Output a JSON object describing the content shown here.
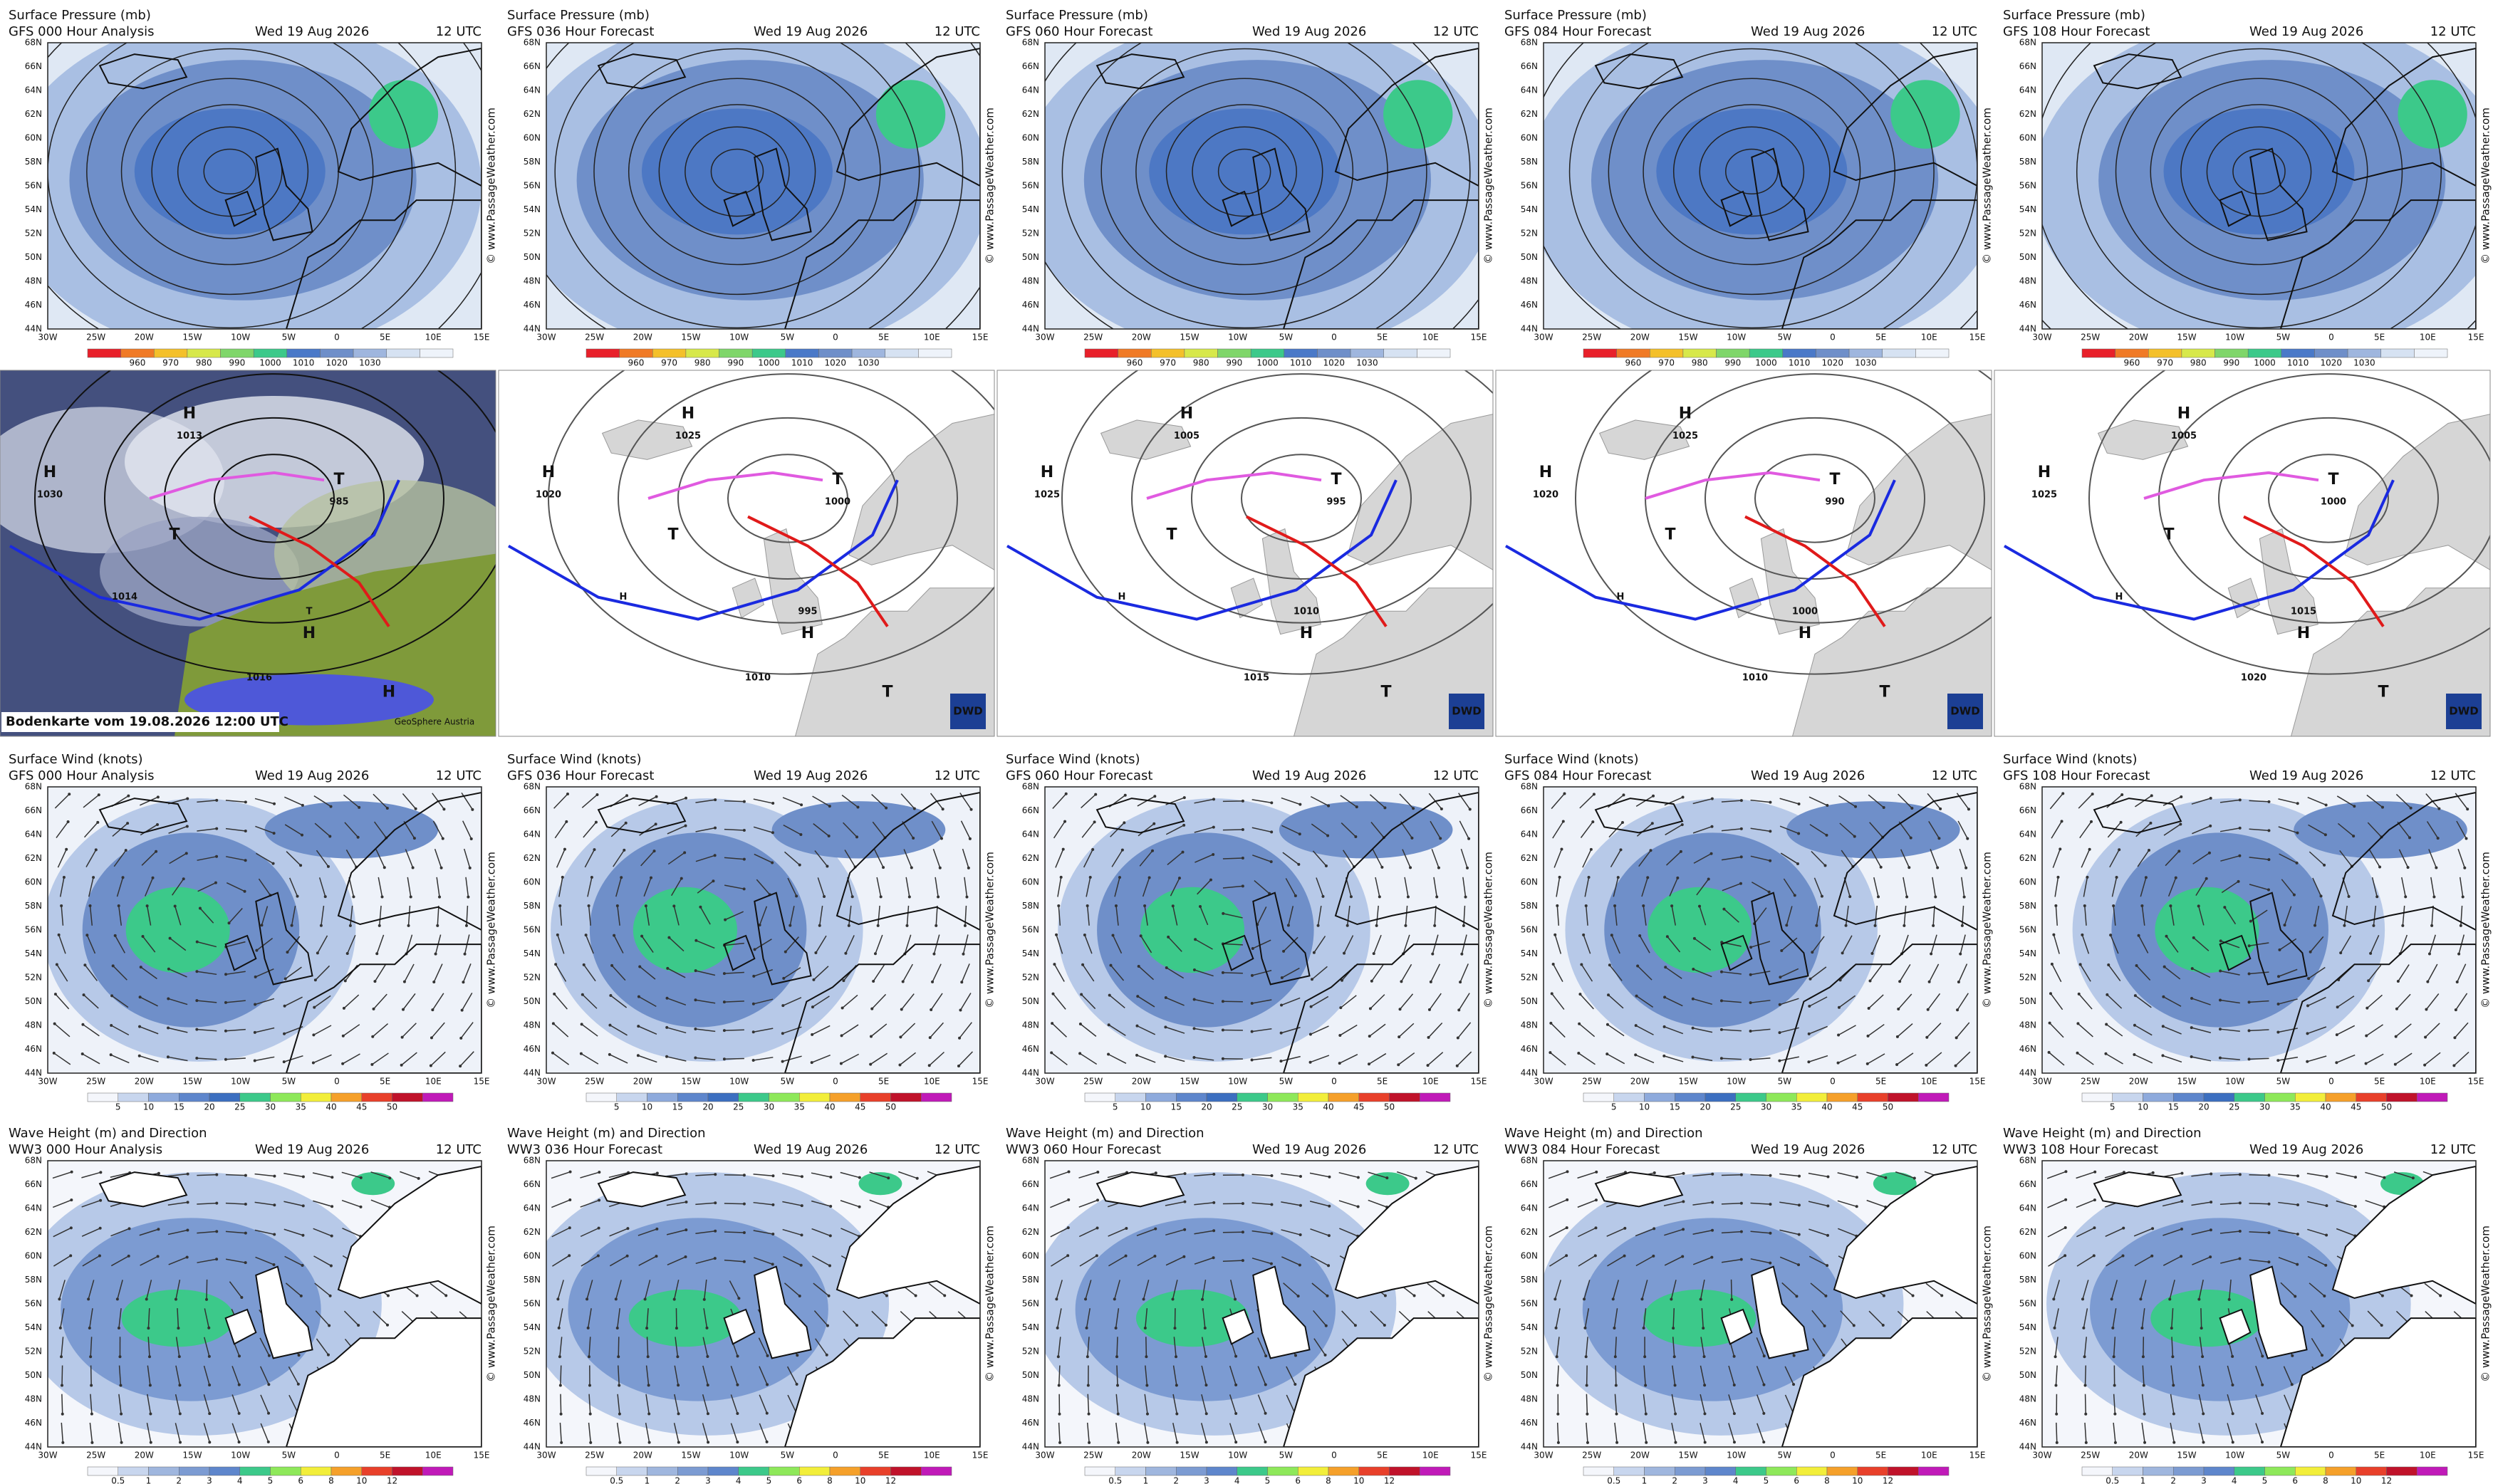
{
  "latitudes": [
    "68N",
    "66N",
    "64N",
    "62N",
    "60N",
    "58N",
    "56N",
    "54N",
    "52N",
    "50N",
    "48N",
    "46N",
    "44N"
  ],
  "longitudes": [
    "30W",
    "25W",
    "20W",
    "15W",
    "10W",
    "5W",
    "0",
    "5E",
    "10E",
    "15E"
  ],
  "watermark": "© www.PassageWeather.com",
  "scales": {
    "pressure": [
      960,
      970,
      980,
      990,
      1000,
      1010,
      1020,
      1030
    ],
    "wind": [
      5,
      10,
      15,
      20,
      25,
      30,
      35,
      40,
      45,
      50
    ],
    "wave": [
      0.5,
      1,
      2,
      3,
      4,
      5,
      6,
      8,
      10,
      12
    ]
  },
  "pressure_row": {
    "panels": [
      {
        "title": "Surface Pressure (mb)",
        "model": "GFS 000 Hour Analysis",
        "date": "Wed 19 Aug 2026",
        "time": "12 UTC"
      },
      {
        "title": "Surface Pressure (mb)",
        "model": "GFS 036 Hour Forecast",
        "date": "Wed 19 Aug 2026",
        "time": "12 UTC"
      },
      {
        "title": "Surface Pressure (mb)",
        "model": "GFS 060 Hour Forecast",
        "date": "Wed 19 Aug 2026",
        "time": "12 UTC"
      },
      {
        "title": "Surface Pressure (mb)",
        "model": "GFS 084 Hour Forecast",
        "date": "Wed 19 Aug 2026",
        "time": "12 UTC"
      },
      {
        "title": "Surface Pressure (mb)",
        "model": "GFS 108 Hour Forecast",
        "date": "Wed 19 Aug 2026",
        "time": "12 UTC"
      }
    ]
  },
  "analysis_row": {
    "caption": "Bodenkarte vom 19.08.2026 12:00 UTC",
    "source": "GeoSphere Austria",
    "logo": "DWD",
    "charts": [
      {
        "labels": [
          "H",
          "1030",
          "H",
          "1013",
          "T",
          "985",
          "T",
          "T",
          "H",
          "1016",
          "H",
          "1014"
        ]
      },
      {
        "labels": [
          "H",
          "1020",
          "H",
          "1025",
          "T",
          "1000",
          "T",
          "995",
          "H",
          "1010",
          "T",
          "H"
        ]
      },
      {
        "labels": [
          "H",
          "1025",
          "H",
          "1005",
          "T",
          "995",
          "T",
          "1010",
          "H",
          "1015",
          "T",
          "H"
        ]
      },
      {
        "labels": [
          "H",
          "1020",
          "H",
          "1025",
          "T",
          "990",
          "T",
          "1000",
          "H",
          "1010",
          "T",
          "H"
        ]
      },
      {
        "labels": [
          "H",
          "1025",
          "H",
          "1005",
          "T",
          "1000",
          "T",
          "1015",
          "H",
          "1020",
          "T",
          "H"
        ]
      }
    ]
  },
  "wind_row": {
    "panels": [
      {
        "title": "Surface Wind (knots)",
        "model": "GFS 000 Hour Analysis",
        "date": "Wed 19 Aug 2026",
        "time": "12 UTC"
      },
      {
        "title": "Surface Wind (knots)",
        "model": "GFS 036 Hour Forecast",
        "date": "Wed 19 Aug 2026",
        "time": "12 UTC"
      },
      {
        "title": "Surface Wind (knots)",
        "model": "GFS 060 Hour Forecast",
        "date": "Wed 19 Aug 2026",
        "time": "12 UTC"
      },
      {
        "title": "Surface Wind (knots)",
        "model": "GFS 084 Hour Forecast",
        "date": "Wed 19 Aug 2026",
        "time": "12 UTC"
      },
      {
        "title": "Surface Wind (knots)",
        "model": "GFS 108 Hour Forecast",
        "date": "Wed 19 Aug 2026",
        "time": "12 UTC"
      }
    ]
  },
  "wave_row": {
    "panels": [
      {
        "title": "Wave Height (m) and Direction",
        "model": "WW3 000 Hour Analysis",
        "date": "Wed 19 Aug 2026",
        "time": "12 UTC"
      },
      {
        "title": "Wave Height (m) and Direction",
        "model": "WW3 036 Hour Forecast",
        "date": "Wed 19 Aug 2026",
        "time": "12 UTC"
      },
      {
        "title": "Wave Height (m) and Direction",
        "model": "WW3 060 Hour Forecast",
        "date": "Wed 19 Aug 2026",
        "time": "12 UTC"
      },
      {
        "title": "Wave Height (m) and Direction",
        "model": "WW3 084 Hour Forecast",
        "date": "Wed 19 Aug 2026",
        "time": "12 UTC"
      },
      {
        "title": "Wave Height (m) and Direction",
        "model": "WW3 108 Hour Forecast",
        "date": "Wed 19 Aug 2026",
        "time": "12 UTC"
      }
    ]
  }
}
